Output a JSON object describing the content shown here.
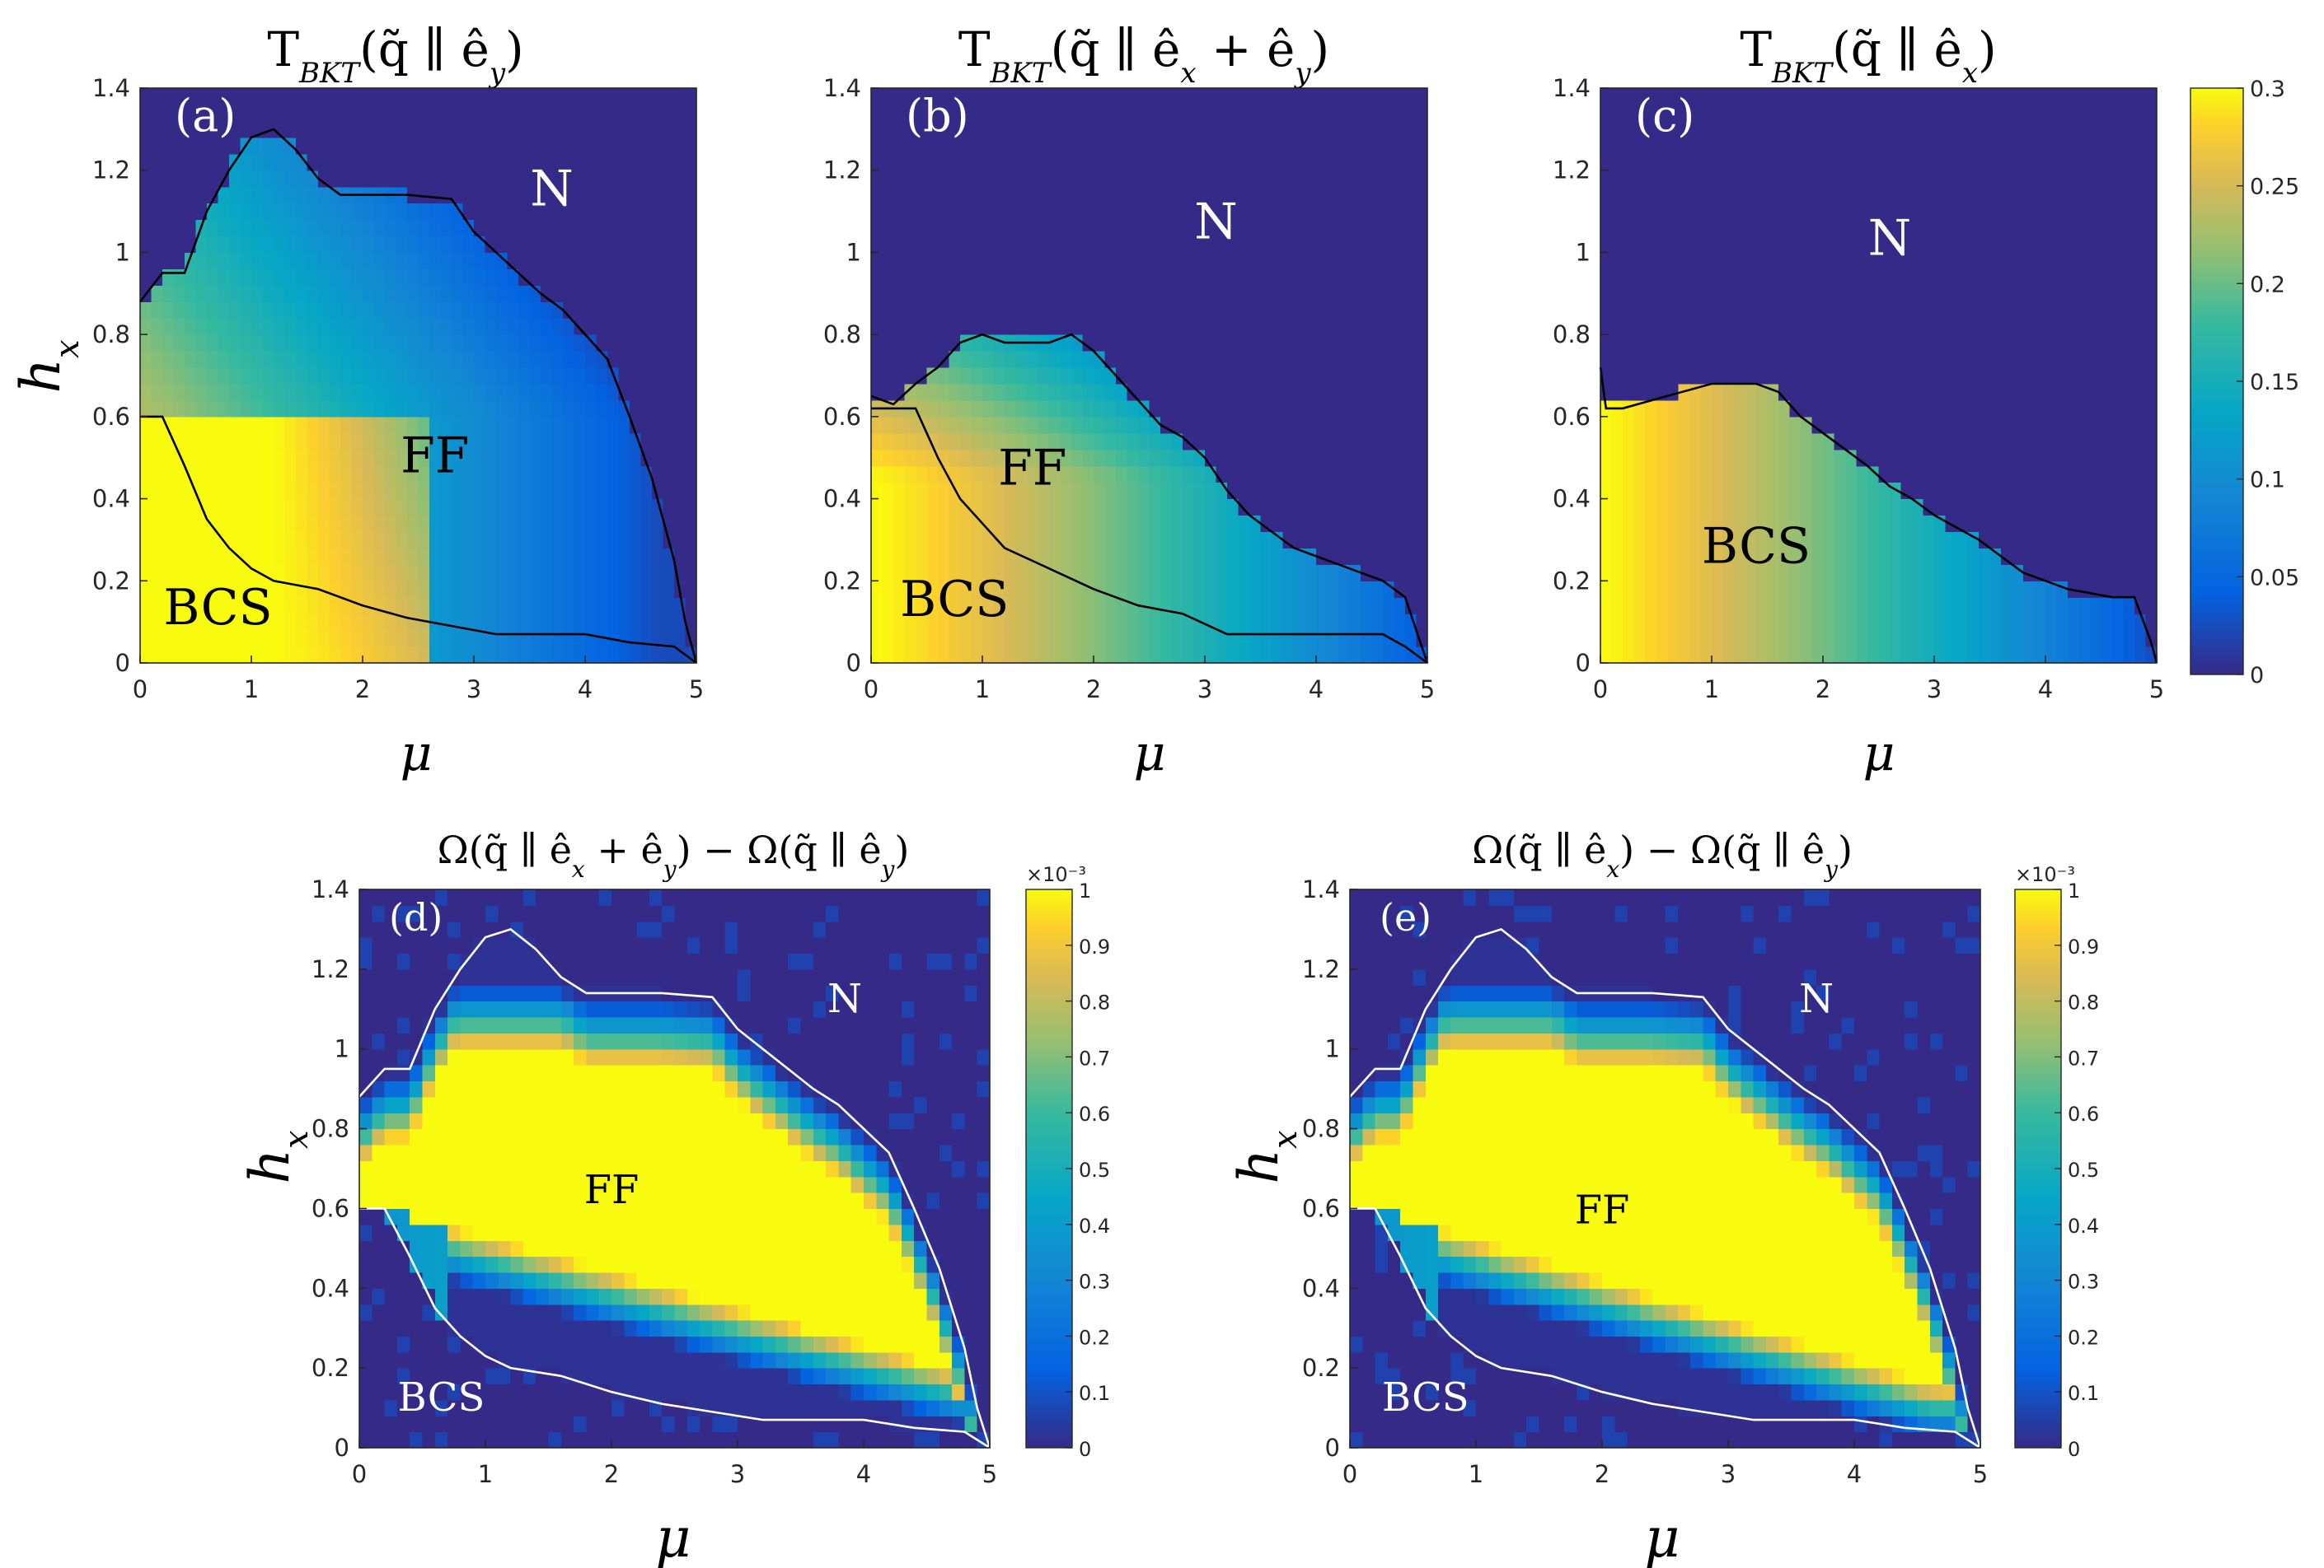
{
  "chart_data": [
    {
      "id": "a",
      "type": "heatmap",
      "title": "T_BKT(q̃ ∥ ê_y)",
      "panel_label": "(a)",
      "xlabel": "μ",
      "ylabel": "h_x",
      "xlim": [
        0,
        5
      ],
      "ylim": [
        0,
        1.4
      ],
      "xticks": [
        "0",
        "1",
        "2",
        "3",
        "4",
        "5"
      ],
      "yticks": [
        "0",
        "0.2",
        "0.4",
        "0.6",
        "0.8",
        "1",
        "1.2",
        "1.4"
      ],
      "clim": [
        0,
        0.3
      ],
      "regions": [
        {
          "label": "N",
          "mu": 3.7,
          "h": 1.15
        },
        {
          "label": "FF",
          "mu": 2.65,
          "h": 0.5
        },
        {
          "label": "BCS",
          "mu": 0.7,
          "h": 0.13
        }
      ],
      "boundary_upper": [
        [
          0,
          0.88
        ],
        [
          0.2,
          0.95
        ],
        [
          0.4,
          0.95
        ],
        [
          0.6,
          1.1
        ],
        [
          0.8,
          1.2
        ],
        [
          1.0,
          1.28
        ],
        [
          1.2,
          1.3
        ],
        [
          1.4,
          1.25
        ],
        [
          1.6,
          1.18
        ],
        [
          1.8,
          1.14
        ],
        [
          2.0,
          1.14
        ],
        [
          2.4,
          1.14
        ],
        [
          2.8,
          1.13
        ],
        [
          3.0,
          1.05
        ],
        [
          3.2,
          1.0
        ],
        [
          3.4,
          0.95
        ],
        [
          3.6,
          0.9
        ],
        [
          3.8,
          0.86
        ],
        [
          4.0,
          0.8
        ],
        [
          4.2,
          0.74
        ],
        [
          4.4,
          0.6
        ],
        [
          4.6,
          0.45
        ],
        [
          4.8,
          0.25
        ],
        [
          4.9,
          0.1
        ],
        [
          5.0,
          0.0
        ]
      ],
      "boundary_lower": [
        [
          0,
          0.6
        ],
        [
          0.2,
          0.6
        ],
        [
          0.4,
          0.48
        ],
        [
          0.6,
          0.35
        ],
        [
          0.8,
          0.28
        ],
        [
          1.0,
          0.23
        ],
        [
          1.2,
          0.2
        ],
        [
          1.6,
          0.18
        ],
        [
          2.0,
          0.14
        ],
        [
          2.4,
          0.11
        ],
        [
          2.8,
          0.09
        ],
        [
          3.2,
          0.07
        ],
        [
          4.0,
          0.07
        ],
        [
          4.4,
          0.05
        ],
        [
          4.8,
          0.04
        ],
        [
          5.0,
          0.0
        ]
      ],
      "boundary_color": "#000000"
    },
    {
      "id": "b",
      "type": "heatmap",
      "title": "T_BKT(q̃ ∥ ê_x + ê_y)",
      "panel_label": "(b)",
      "xlabel": "μ",
      "ylabel": "",
      "xlim": [
        0,
        5
      ],
      "ylim": [
        0,
        1.4
      ],
      "xticks": [
        "0",
        "1",
        "2",
        "3",
        "4",
        "5"
      ],
      "yticks": [
        "0",
        "0.2",
        "0.4",
        "0.6",
        "0.8",
        "1",
        "1.2",
        "1.4"
      ],
      "clim": [
        0,
        0.3
      ],
      "regions": [
        {
          "label": "N",
          "mu": 3.1,
          "h": 1.07
        },
        {
          "label": "FF",
          "mu": 1.45,
          "h": 0.47
        },
        {
          "label": "BCS",
          "mu": 0.75,
          "h": 0.15
        }
      ],
      "boundary_upper": [
        [
          0,
          0.65
        ],
        [
          0.2,
          0.63
        ],
        [
          0.4,
          0.68
        ],
        [
          0.6,
          0.72
        ],
        [
          0.8,
          0.78
        ],
        [
          1.0,
          0.8
        ],
        [
          1.2,
          0.78
        ],
        [
          1.6,
          0.78
        ],
        [
          1.8,
          0.8
        ],
        [
          2.0,
          0.76
        ],
        [
          2.2,
          0.7
        ],
        [
          2.4,
          0.64
        ],
        [
          2.6,
          0.58
        ],
        [
          2.8,
          0.55
        ],
        [
          3.0,
          0.5
        ],
        [
          3.2,
          0.42
        ],
        [
          3.4,
          0.36
        ],
        [
          3.6,
          0.32
        ],
        [
          3.8,
          0.28
        ],
        [
          4.0,
          0.26
        ],
        [
          4.2,
          0.24
        ],
        [
          4.4,
          0.22
        ],
        [
          4.6,
          0.2
        ],
        [
          4.8,
          0.16
        ],
        [
          5.0,
          0.0
        ]
      ],
      "boundary_lower": [
        [
          0,
          0.62
        ],
        [
          0.4,
          0.62
        ],
        [
          0.6,
          0.5
        ],
        [
          0.8,
          0.4
        ],
        [
          1.0,
          0.34
        ],
        [
          1.2,
          0.28
        ],
        [
          1.6,
          0.23
        ],
        [
          2.0,
          0.18
        ],
        [
          2.4,
          0.14
        ],
        [
          2.8,
          0.12
        ],
        [
          3.2,
          0.07
        ],
        [
          4.0,
          0.07
        ],
        [
          4.6,
          0.07
        ],
        [
          4.8,
          0.04
        ],
        [
          5.0,
          0.0
        ]
      ],
      "boundary_color": "#000000"
    },
    {
      "id": "c",
      "type": "heatmap",
      "title": "T_BKT(q̃ ∥ ê_x)",
      "panel_label": "(c)",
      "xlabel": "μ",
      "ylabel": "",
      "xlim": [
        0,
        5
      ],
      "ylim": [
        0,
        1.4
      ],
      "xticks": [
        "0",
        "1",
        "2",
        "3",
        "4",
        "5"
      ],
      "yticks": [
        "0",
        "0.2",
        "0.4",
        "0.6",
        "0.8",
        "1",
        "1.2",
        "1.4"
      ],
      "clim": [
        0,
        0.3
      ],
      "colorbar_ticks": [
        "0",
        "0.05",
        "0.1",
        "0.15",
        "0.2",
        "0.25",
        "0.3"
      ],
      "regions": [
        {
          "label": "N",
          "mu": 2.6,
          "h": 1.03
        },
        {
          "label": "BCS",
          "mu": 1.4,
          "h": 0.28
        }
      ],
      "boundary_upper": [
        [
          0,
          0.72
        ],
        [
          0.05,
          0.62
        ],
        [
          0.2,
          0.62
        ],
        [
          0.6,
          0.65
        ],
        [
          1.0,
          0.68
        ],
        [
          1.4,
          0.68
        ],
        [
          1.6,
          0.66
        ],
        [
          1.8,
          0.6
        ],
        [
          2.0,
          0.56
        ],
        [
          2.2,
          0.52
        ],
        [
          2.4,
          0.48
        ],
        [
          2.6,
          0.43
        ],
        [
          2.8,
          0.4
        ],
        [
          3.0,
          0.36
        ],
        [
          3.2,
          0.33
        ],
        [
          3.4,
          0.3
        ],
        [
          3.6,
          0.26
        ],
        [
          3.8,
          0.22
        ],
        [
          4.0,
          0.2
        ],
        [
          4.2,
          0.18
        ],
        [
          4.4,
          0.17
        ],
        [
          4.6,
          0.16
        ],
        [
          4.8,
          0.16
        ],
        [
          4.95,
          0.05
        ],
        [
          5.0,
          0.0
        ]
      ],
      "boundary_color": "#000000"
    },
    {
      "id": "d",
      "type": "heatmap",
      "title": "Ω(q̃ ∥ ê_x + ê_y) − Ω(q̃ ∥ ê_y)",
      "panel_label": "(d)",
      "xlabel": "μ",
      "ylabel": "h_x",
      "xlim": [
        0,
        5
      ],
      "ylim": [
        0,
        1.4
      ],
      "xticks": [
        "0",
        "1",
        "2",
        "3",
        "4",
        "5"
      ],
      "yticks": [
        "0",
        "0.2",
        "0.4",
        "0.6",
        "0.8",
        "1",
        "1.2",
        "1.4"
      ],
      "clim": [
        0,
        0.001
      ],
      "colorbar_exponent": "×10⁻³",
      "colorbar_ticks": [
        "0",
        "0.1",
        "0.2",
        "0.3",
        "0.4",
        "0.5",
        "0.6",
        "0.7",
        "0.8",
        "0.9",
        "1"
      ],
      "regions": [
        {
          "label": "N",
          "mu": 3.85,
          "h": 1.13
        },
        {
          "label": "FF",
          "mu": 2.0,
          "h": 0.65
        },
        {
          "label": "BCS",
          "mu": 0.65,
          "h": 0.13
        }
      ],
      "boundary_color": "#ffffff"
    },
    {
      "id": "e",
      "type": "heatmap",
      "title": "Ω(q̃ ∥ ê_x) − Ω(q̃ ∥ ê_y)",
      "panel_label": "(e)",
      "xlabel": "μ",
      "ylabel": "h_x",
      "xlim": [
        0,
        5
      ],
      "ylim": [
        0,
        1.4
      ],
      "xticks": [
        "0",
        "1",
        "2",
        "3",
        "4",
        "5"
      ],
      "yticks": [
        "0",
        "0.2",
        "0.4",
        "0.6",
        "0.8",
        "1",
        "1.2",
        "1.4"
      ],
      "clim": [
        0,
        0.001
      ],
      "colorbar_exponent": "×10⁻³",
      "colorbar_ticks": [
        "0",
        "0.1",
        "0.2",
        "0.3",
        "0.4",
        "0.5",
        "0.6",
        "0.7",
        "0.8",
        "0.9",
        "1"
      ],
      "regions": [
        {
          "label": "N",
          "mu": 3.7,
          "h": 1.13
        },
        {
          "label": "FF",
          "mu": 2.0,
          "h": 0.6
        },
        {
          "label": "BCS",
          "mu": 0.6,
          "h": 0.13
        }
      ],
      "boundary_color": "#ffffff"
    }
  ]
}
